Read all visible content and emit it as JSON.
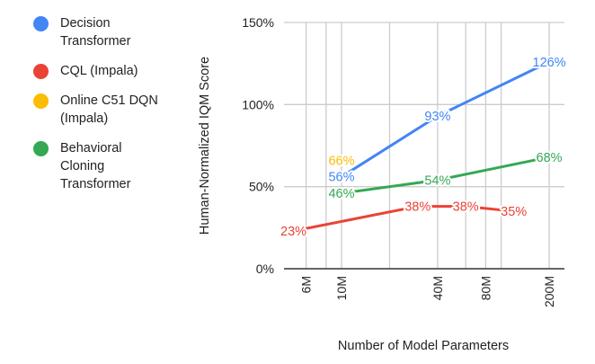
{
  "chart_data": {
    "type": "line",
    "title": "",
    "xlabel": "Number of Model Parameters",
    "ylabel": "Human-Normalized IQM Score",
    "x_scale": "log",
    "xlim": [
      4.4,
      250
    ],
    "x_unit": "millions",
    "x_ticks": [
      6,
      10,
      40,
      80,
      200
    ],
    "x_tick_labels": [
      "6M",
      "10M",
      "40M",
      "80M",
      "200M"
    ],
    "x_minor_gridlines": [
      8,
      20,
      60,
      100
    ],
    "ylim": [
      0,
      150
    ],
    "y_ticks": [
      0,
      50,
      100,
      150
    ],
    "y_tick_labels": [
      "0%",
      "50%",
      "100%",
      "150%"
    ],
    "grid": true,
    "legend_position": "left",
    "series": [
      {
        "name": "Decision Transformer",
        "color": "#4285F4",
        "x": [
          10,
          40,
          200
        ],
        "y": [
          56,
          93,
          126
        ],
        "labels": [
          "56%",
          "93%",
          "126%"
        ]
      },
      {
        "name": "CQL (Impala)",
        "color": "#EA4335",
        "x": [
          5,
          30,
          60,
          120
        ],
        "y": [
          23,
          38,
          38,
          35
        ],
        "labels": [
          "23%",
          "38%",
          "38%",
          "35%"
        ]
      },
      {
        "name": "Online C51 DQN (Impala)",
        "color": "#FBBC04",
        "x": [
          10
        ],
        "y": [
          66
        ],
        "labels": [
          "66%"
        ]
      },
      {
        "name": "Behavioral Cloning Transformer",
        "color": "#34A853",
        "x": [
          10,
          40,
          200
        ],
        "y": [
          46,
          54,
          68
        ],
        "labels": [
          "46%",
          "54%",
          "68%"
        ]
      }
    ]
  }
}
